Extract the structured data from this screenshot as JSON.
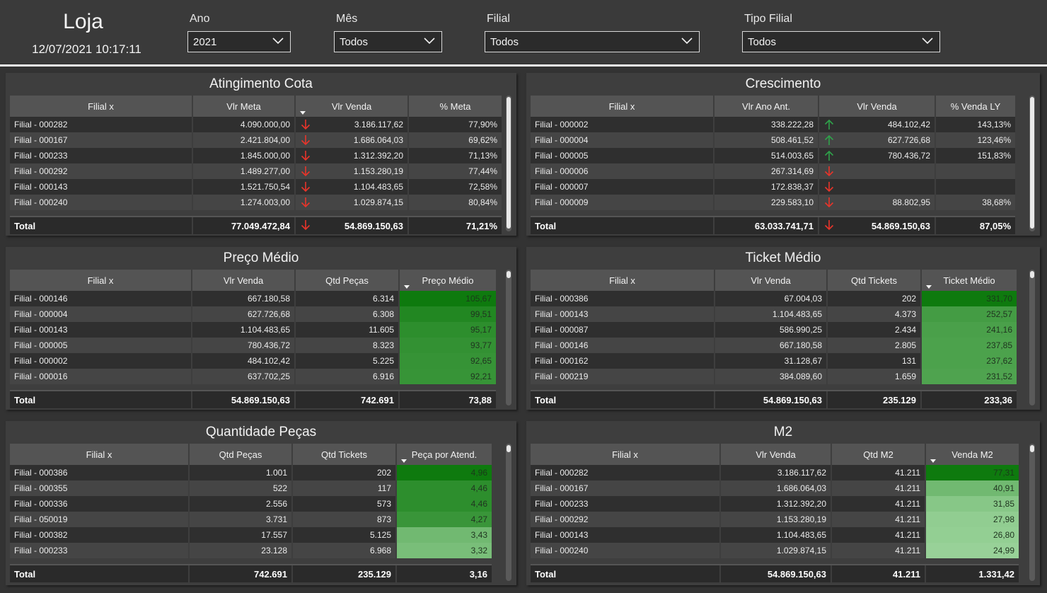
{
  "header": {
    "title": "Loja",
    "datetime": "12/07/2021 10:17:11",
    "filters": [
      {
        "label": "Ano",
        "value": "2021"
      },
      {
        "label": "Mês",
        "value": "Todos"
      },
      {
        "label": "Filial",
        "value": "Todos"
      },
      {
        "label": "Tipo Filial",
        "value": "Todos"
      }
    ]
  },
  "colors": {
    "arrow_down": "#e8342a",
    "arrow_up": "#2fa24a",
    "green_strong": "#0e7a0e",
    "green_light": "#9cd49c"
  },
  "panels": {
    "atingimento": {
      "title": "Atingimento Cota",
      "columns": [
        "Filial x",
        "Vlr Meta",
        "Vlr Venda",
        "% Meta"
      ],
      "rows": [
        {
          "filial": "Filial - 000282",
          "meta": "4.090.000,00",
          "arrow": "down",
          "venda": "3.186.117,62",
          "pct": "77,90%"
        },
        {
          "filial": "Filial - 000167",
          "meta": "2.421.804,00",
          "arrow": "down",
          "venda": "1.686.064,03",
          "pct": "69,62%"
        },
        {
          "filial": "Filial - 000233",
          "meta": "1.845.000,00",
          "arrow": "down",
          "venda": "1.312.392,20",
          "pct": "71,13%"
        },
        {
          "filial": "Filial - 000292",
          "meta": "1.489.277,00",
          "arrow": "down",
          "venda": "1.153.280,19",
          "pct": "77,44%"
        },
        {
          "filial": "Filial - 000143",
          "meta": "1.521.750,54",
          "arrow": "down",
          "venda": "1.104.483,65",
          "pct": "72,58%"
        },
        {
          "filial": "Filial - 000240",
          "meta": "1.274.003,00",
          "arrow": "down",
          "venda": "1.029.874,15",
          "pct": "80,84%"
        }
      ],
      "total": {
        "label": "Total",
        "meta": "77.049.472,84",
        "arrow": "down",
        "venda": "54.869.150,63",
        "pct": "71,21%"
      }
    },
    "crescimento": {
      "title": "Crescimento",
      "columns": [
        "Filial x",
        "Vlr Ano Ant.",
        "Vlr Venda",
        "% Venda LY"
      ],
      "rows": [
        {
          "filial": "Filial - 000002",
          "ant": "338.222,28",
          "arrow": "up",
          "venda": "484.102,42",
          "pct": "143,13%"
        },
        {
          "filial": "Filial - 000004",
          "ant": "508.461,52",
          "arrow": "up",
          "venda": "627.726,68",
          "pct": "123,46%"
        },
        {
          "filial": "Filial - 000005",
          "ant": "514.003,65",
          "arrow": "up",
          "venda": "780.436,72",
          "pct": "151,83%"
        },
        {
          "filial": "Filial - 000006",
          "ant": "267.314,69",
          "arrow": "down",
          "venda": "",
          "pct": ""
        },
        {
          "filial": "Filial - 000007",
          "ant": "172.838,37",
          "arrow": "down",
          "venda": "",
          "pct": ""
        },
        {
          "filial": "Filial - 000009",
          "ant": "229.583,10",
          "arrow": "down",
          "venda": "88.802,95",
          "pct": "38,68%"
        }
      ],
      "total": {
        "label": "Total",
        "ant": "63.033.741,71",
        "arrow": "down",
        "venda": "54.869.150,63",
        "pct": "87,05%"
      }
    },
    "preco": {
      "title": "Preço Médio",
      "columns": [
        "Filial x",
        "Vlr Venda",
        "Qtd Peças",
        "Preço Médio"
      ],
      "rows": [
        {
          "filial": "Filial - 000146",
          "venda": "667.180,58",
          "qtd": "6.314",
          "preco": "105,67",
          "shade": 1.0
        },
        {
          "filial": "Filial - 000004",
          "venda": "627.726,68",
          "qtd": "6.308",
          "preco": "99,51",
          "shade": 0.86
        },
        {
          "filial": "Filial - 000143",
          "venda": "1.104.483,65",
          "qtd": "11.605",
          "preco": "95,17",
          "shade": 0.78
        },
        {
          "filial": "Filial - 000005",
          "venda": "780.436,72",
          "qtd": "8.323",
          "preco": "93,77",
          "shade": 0.74
        },
        {
          "filial": "Filial - 000002",
          "venda": "484.102,42",
          "qtd": "5.225",
          "preco": "92,65",
          "shade": 0.72
        },
        {
          "filial": "Filial - 000016",
          "venda": "637.702,25",
          "qtd": "6.916",
          "preco": "92,21",
          "shade": 0.71
        }
      ],
      "total": {
        "label": "Total",
        "venda": "54.869.150,63",
        "qtd": "742.691",
        "preco": "73,88"
      }
    },
    "ticket": {
      "title": "Ticket Médio",
      "columns": [
        "Filial x",
        "Vlr Venda",
        "Qtd Tickets",
        "Ticket Médio"
      ],
      "rows": [
        {
          "filial": "Filial - 000386",
          "venda": "67.004,03",
          "qtd": "202",
          "ticket": "331,70",
          "shade": 1.0
        },
        {
          "filial": "Filial - 000143",
          "venda": "1.104.483,65",
          "qtd": "4.373",
          "ticket": "252,57",
          "shade": 0.62
        },
        {
          "filial": "Filial - 000087",
          "venda": "586.990,25",
          "qtd": "2.434",
          "ticket": "241,16",
          "shade": 0.58
        },
        {
          "filial": "Filial - 000146",
          "venda": "667.180,58",
          "qtd": "2.805",
          "ticket": "237,85",
          "shade": 0.56
        },
        {
          "filial": "Filial - 000162",
          "venda": "31.128,67",
          "qtd": "131",
          "ticket": "237,62",
          "shade": 0.56
        },
        {
          "filial": "Filial - 000219",
          "venda": "384.089,60",
          "qtd": "1.659",
          "ticket": "231,52",
          "shade": 0.54
        }
      ],
      "total": {
        "label": "Total",
        "venda": "54.869.150,63",
        "qtd": "235.129",
        "ticket": "233,36"
      }
    },
    "quantidade": {
      "title": "Quantidade Peças",
      "columns": [
        "Filial x",
        "Qtd Peças",
        "Qtd Tickets",
        "Peça por Atend."
      ],
      "rows": [
        {
          "filial": "Filial - 000386",
          "pecas": "1.001",
          "tickets": "202",
          "peca_atend": "4,96",
          "shade": 1.0
        },
        {
          "filial": "Filial - 000355",
          "pecas": "522",
          "tickets": "117",
          "peca_atend": "4,46",
          "shade": 0.78
        },
        {
          "filial": "Filial - 000336",
          "pecas": "2.556",
          "tickets": "573",
          "peca_atend": "4,46",
          "shade": 0.78
        },
        {
          "filial": "Filial - 050019",
          "pecas": "3.731",
          "tickets": "873",
          "peca_atend": "4,27",
          "shade": 0.7
        },
        {
          "filial": "Filial - 000382",
          "pecas": "17.557",
          "tickets": "5.125",
          "peca_atend": "3,43",
          "shade": 0.3
        },
        {
          "filial": "Filial - 000233",
          "pecas": "23.128",
          "tickets": "6.968",
          "peca_atend": "3,32",
          "shade": 0.25
        }
      ],
      "total": {
        "label": "Total",
        "pecas": "742.691",
        "tickets": "235.129",
        "peca_atend": "3,16"
      }
    },
    "m2": {
      "title": "M2",
      "columns": [
        "Filial x",
        "Vlr Venda",
        "Qtd M2",
        "Venda M2"
      ],
      "rows": [
        {
          "filial": "Filial - 000282",
          "venda": "3.186.117,62",
          "qtd": "41.211",
          "vm2": "77,31",
          "shade": 1.0
        },
        {
          "filial": "Filial - 000167",
          "venda": "1.686.064,03",
          "qtd": "41.211",
          "vm2": "40,91",
          "shade": 0.3
        },
        {
          "filial": "Filial - 000233",
          "venda": "1.312.392,20",
          "qtd": "41.211",
          "vm2": "31,85",
          "shade": 0.15
        },
        {
          "filial": "Filial - 000292",
          "venda": "1.153.280,19",
          "qtd": "41.211",
          "vm2": "27,98",
          "shade": 0.08
        },
        {
          "filial": "Filial - 000143",
          "venda": "1.104.483,65",
          "qtd": "41.211",
          "vm2": "26,80",
          "shade": 0.06
        },
        {
          "filial": "Filial - 000240",
          "venda": "1.029.874,15",
          "qtd": "41.211",
          "vm2": "24,99",
          "shade": 0.03
        }
      ],
      "total": {
        "label": "Total",
        "venda": "54.869.150,63",
        "qtd": "41.211",
        "vm2": "1.331,42"
      }
    }
  }
}
